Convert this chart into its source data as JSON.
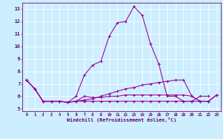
{
  "xlabel": "Windchill (Refroidissement éolien,°C)",
  "x_hours": [
    0,
    1,
    2,
    3,
    4,
    5,
    6,
    7,
    8,
    9,
    10,
    11,
    12,
    13,
    14,
    15,
    16,
    17,
    18,
    19,
    20,
    21,
    22,
    23
  ],
  "line1": [
    7.3,
    6.6,
    5.6,
    5.6,
    5.6,
    5.5,
    6.0,
    7.7,
    8.5,
    8.8,
    10.8,
    11.9,
    12.0,
    13.2,
    12.5,
    10.2,
    8.6,
    6.0,
    6.0,
    5.6,
    5.6,
    6.0,
    6.0,
    null
  ],
  "line2": [
    7.3,
    6.6,
    5.6,
    5.6,
    5.6,
    5.5,
    5.6,
    5.7,
    5.8,
    6.0,
    6.2,
    6.4,
    6.6,
    6.7,
    6.9,
    7.0,
    7.1,
    7.2,
    7.3,
    7.3,
    6.0,
    5.6,
    5.6,
    6.1
  ],
  "line3": [
    7.3,
    6.6,
    5.6,
    5.6,
    5.6,
    5.5,
    5.6,
    5.6,
    5.6,
    5.6,
    5.6,
    5.6,
    5.6,
    5.6,
    5.6,
    5.6,
    5.6,
    5.6,
    5.6,
    5.6,
    5.6,
    5.6,
    5.6,
    6.1
  ],
  "line4": [
    7.3,
    6.6,
    5.6,
    5.6,
    5.6,
    5.5,
    5.6,
    6.0,
    5.9,
    5.9,
    6.0,
    6.0,
    6.1,
    6.1,
    6.1,
    6.1,
    6.1,
    6.1,
    6.1,
    6.1,
    6.0,
    5.6,
    5.6,
    6.1
  ],
  "ylim": [
    4.8,
    13.5
  ],
  "xlim": [
    -0.5,
    23.5
  ],
  "line_color": "#990099",
  "bg_color": "#cceeff",
  "grid_color": "#aaccdd",
  "label_color": "#660066",
  "tick_color": "#660066"
}
